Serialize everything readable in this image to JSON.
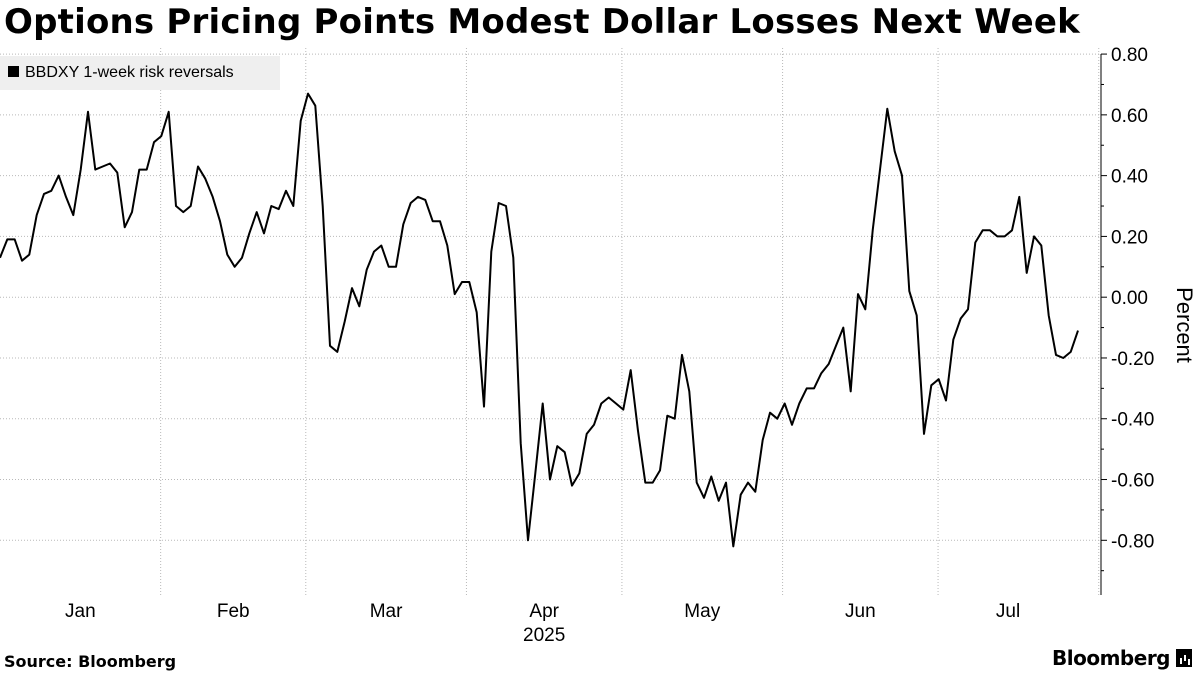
{
  "title": "Options Pricing Points Modest Dollar Losses Next Week",
  "source": "Source: Bloomberg",
  "brand": "Bloomberg",
  "chart_data": {
    "type": "line",
    "series": [
      {
        "name": "BBDXY 1-week risk reversals",
        "color": "#000000",
        "values": [
          0.13,
          0.19,
          0.19,
          0.12,
          0.14,
          0.27,
          0.34,
          0.35,
          0.4,
          0.33,
          0.27,
          0.42,
          0.61,
          0.42,
          0.43,
          0.44,
          0.41,
          0.23,
          0.28,
          0.42,
          0.42,
          0.51,
          0.53,
          0.61,
          0.3,
          0.28,
          0.3,
          0.43,
          0.39,
          0.33,
          0.25,
          0.14,
          0.1,
          0.13,
          0.21,
          0.28,
          0.21,
          0.3,
          0.29,
          0.35,
          0.3,
          0.58,
          0.67,
          0.63,
          0.3,
          -0.16,
          -0.18,
          -0.08,
          0.03,
          -0.03,
          0.09,
          0.15,
          0.17,
          0.1,
          0.1,
          0.24,
          0.31,
          0.33,
          0.32,
          0.25,
          0.25,
          0.17,
          0.01,
          0.05,
          0.05,
          -0.05,
          -0.36,
          0.15,
          0.31,
          0.3,
          0.13,
          -0.48,
          -0.8,
          -0.58,
          -0.35,
          -0.6,
          -0.49,
          -0.51,
          -0.62,
          -0.58,
          -0.45,
          -0.42,
          -0.35,
          -0.33,
          -0.35,
          -0.37,
          -0.24,
          -0.44,
          -0.61,
          -0.61,
          -0.57,
          -0.39,
          -0.4,
          -0.19,
          -0.31,
          -0.61,
          -0.66,
          -0.59,
          -0.67,
          -0.61,
          -0.82,
          -0.65,
          -0.61,
          -0.64,
          -0.47,
          -0.38,
          -0.4,
          -0.35,
          -0.42,
          -0.35,
          -0.3,
          -0.3,
          -0.25,
          -0.22,
          -0.16,
          -0.1,
          -0.31,
          0.01,
          -0.04,
          0.22,
          0.42,
          0.62,
          0.48,
          0.4,
          0.02,
          -0.06,
          -0.45,
          -0.29,
          -0.27,
          -0.34,
          -0.14,
          -0.07,
          -0.04,
          0.18,
          0.22,
          0.22,
          0.2,
          0.2,
          0.22,
          0.33,
          0.08,
          0.2,
          0.17,
          -0.06,
          -0.19,
          -0.2,
          -0.18,
          -0.11
        ]
      }
    ],
    "x_start": "2025-01-01",
    "x_end": "2025-07-28",
    "x_tick_labels": [
      "Jan",
      "Feb",
      "Mar",
      "Apr",
      "May",
      "Jun",
      "Jul"
    ],
    "year_label": "2025",
    "y_ticks": [
      0.8,
      0.6,
      0.4,
      0.2,
      0.0,
      -0.2,
      -0.4,
      -0.6,
      -0.8
    ],
    "y_tick_labels": [
      "0.80",
      "0.60",
      "0.40",
      "0.20",
      "0.00",
      "-0.20",
      "-0.40",
      "-0.60",
      "-0.80"
    ],
    "ylim": [
      -0.98,
      0.82
    ],
    "ylabel": "Percent",
    "xlabel": "",
    "legend_position": "top-left",
    "grid": true
  }
}
